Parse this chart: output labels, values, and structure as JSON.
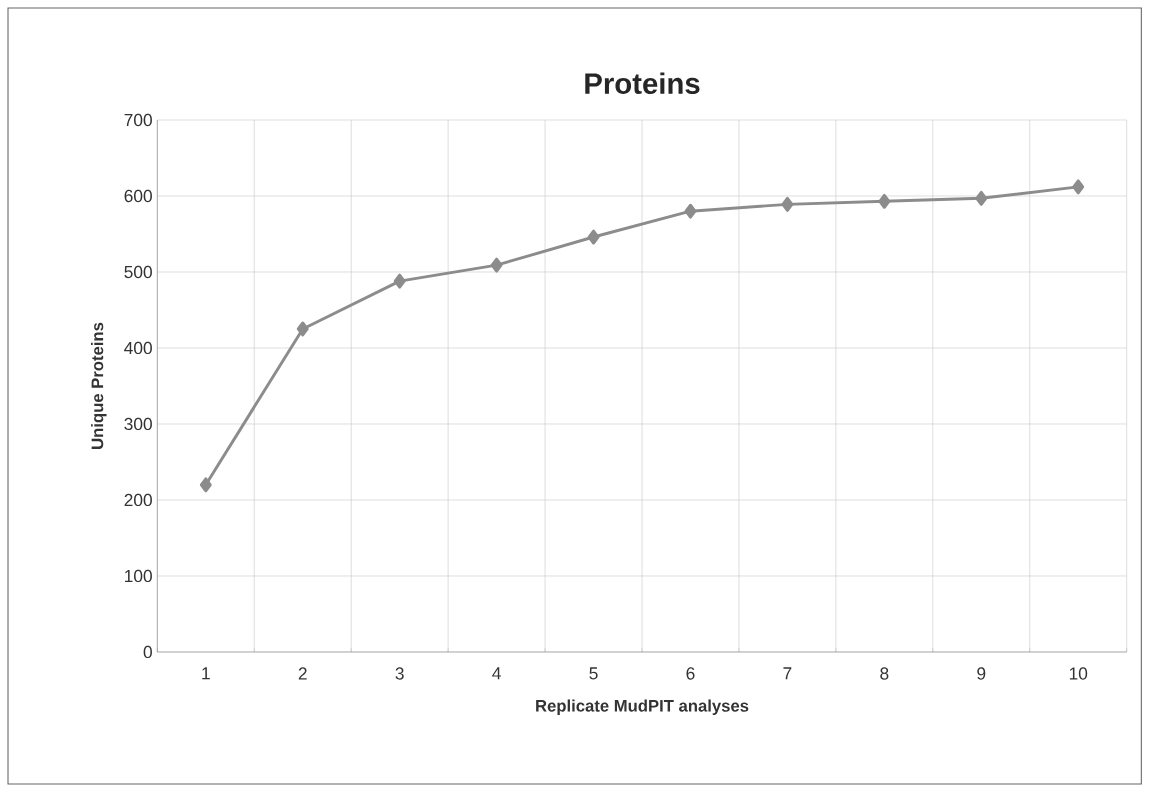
{
  "chart_data": {
    "type": "line",
    "title": "Proteins",
    "xlabel": "Replicate MudPIT analyses",
    "ylabel": "Unique Proteins",
    "categories": [
      "1",
      "2",
      "3",
      "4",
      "5",
      "6",
      "7",
      "8",
      "9",
      "10"
    ],
    "series": [
      {
        "color": "#8c8c8c",
        "values": [
          220,
          425,
          488,
          509,
          546,
          580,
          589,
          593,
          597,
          612
        ]
      }
    ],
    "ylim": [
      0,
      700
    ],
    "yticks": [
      0,
      100,
      200,
      300,
      400,
      500,
      600,
      700
    ],
    "grid": true,
    "marker": "diamond",
    "line_style": "solid"
  }
}
